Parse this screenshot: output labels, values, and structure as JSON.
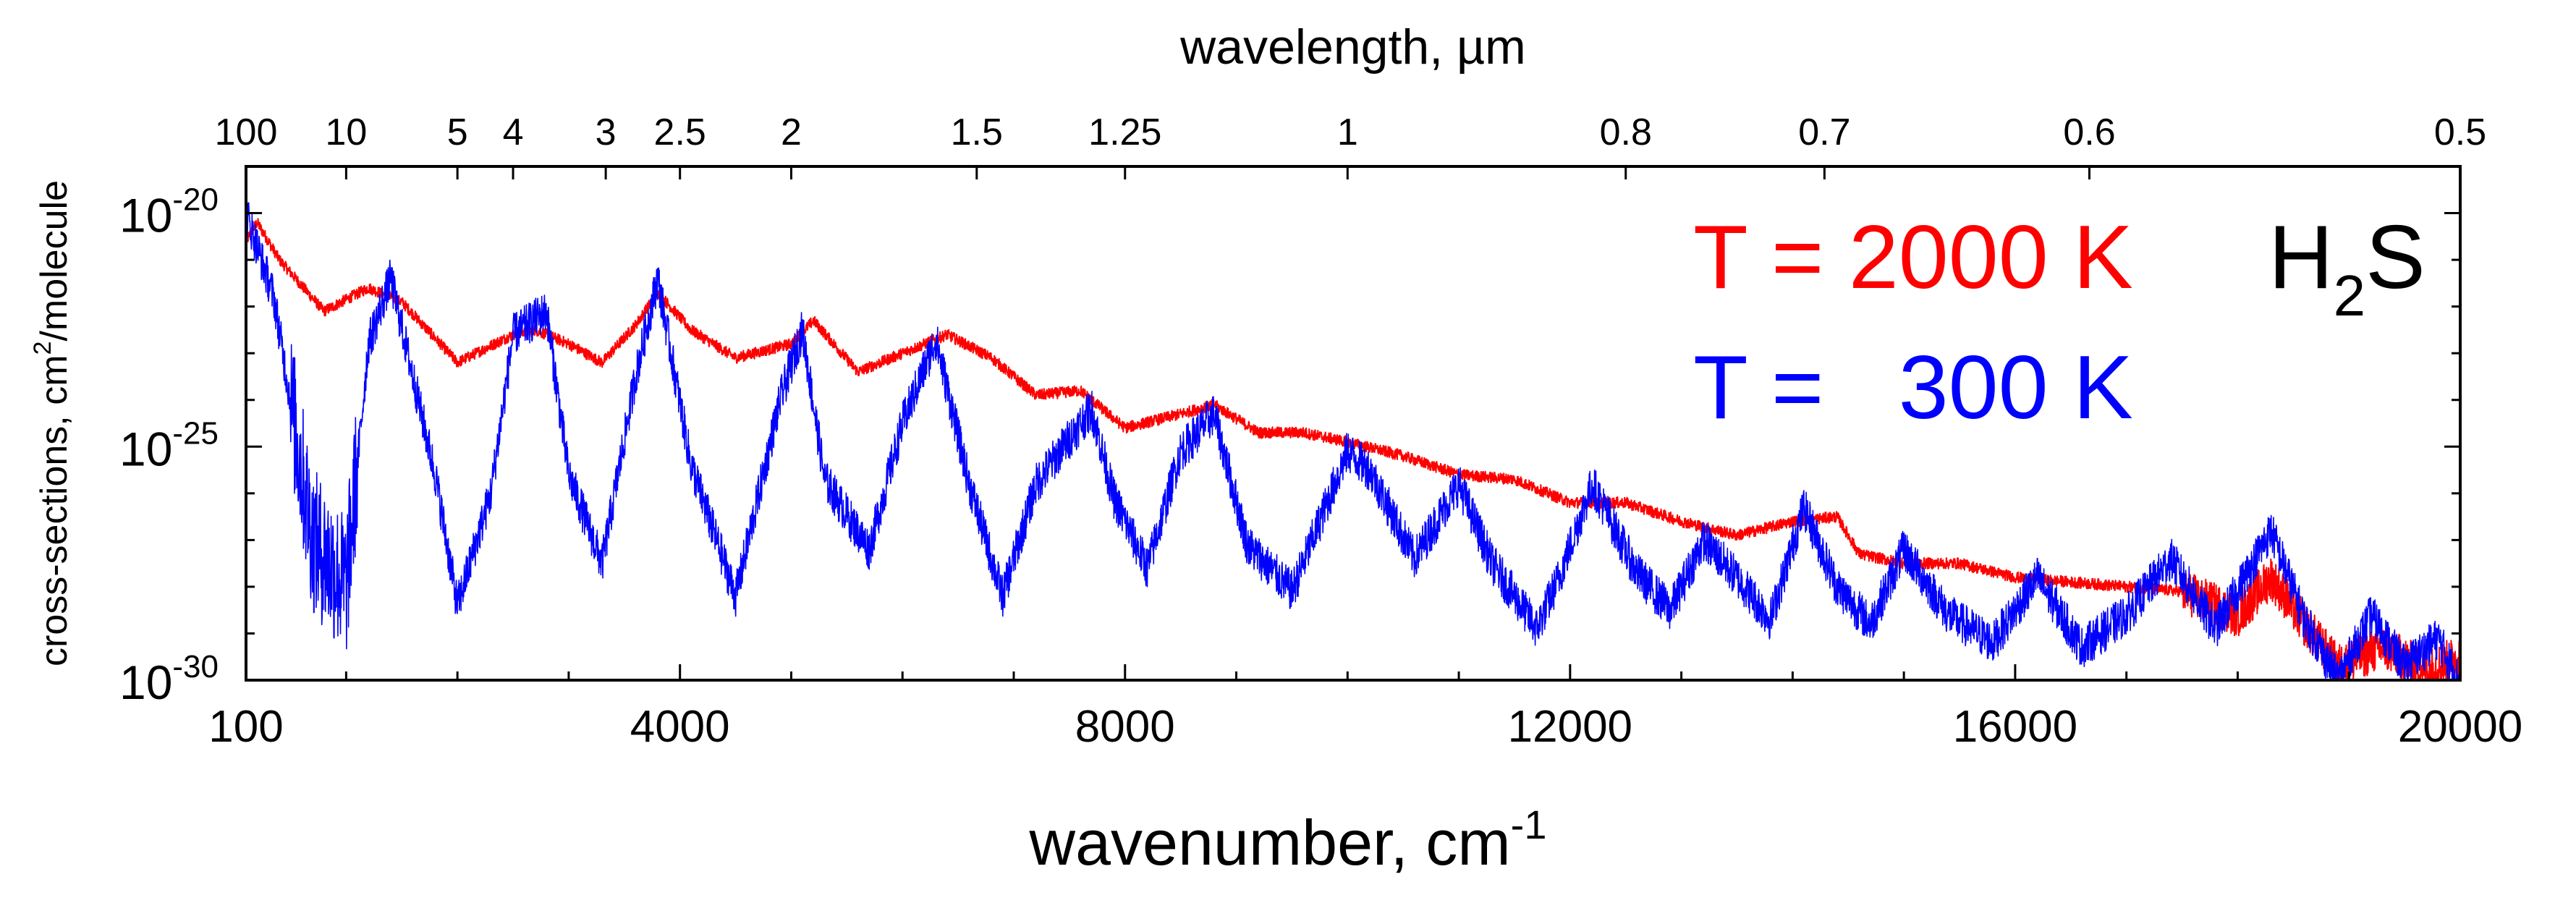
{
  "chart_data": {
    "type": "line",
    "title": "",
    "molecule": {
      "base": "H",
      "sub": "2",
      "rest": "S"
    },
    "xlabel": {
      "text": "wavenumber, cm",
      "sup": "-1"
    },
    "ylabel": {
      "text": "cross-sections, cm",
      "sup": "2",
      "rest": "/molecule"
    },
    "top_xlabel": "wavelength, µm",
    "xlim": [
      100,
      20000
    ],
    "ylim_log10": [
      -30,
      -19
    ],
    "x_ticks": [
      "100",
      "4000",
      "8000",
      "12000",
      "16000",
      "20000"
    ],
    "x_tick_values": [
      100,
      4000,
      8000,
      12000,
      16000,
      20000
    ],
    "y_ticks": [
      {
        "base": "10",
        "exp": "-20",
        "value": -20
      },
      {
        "base": "10",
        "exp": "-25",
        "value": -25
      },
      {
        "base": "10",
        "exp": "-30",
        "value": -30
      }
    ],
    "top_ticks": [
      {
        "label": "100",
        "wavenumber": 100
      },
      {
        "label": "10",
        "wavenumber": 1000
      },
      {
        "label": "5",
        "wavenumber": 2000
      },
      {
        "label": "4",
        "wavenumber": 2500
      },
      {
        "label": "3",
        "wavenumber": 3333
      },
      {
        "label": "2.5",
        "wavenumber": 4000
      },
      {
        "label": "2",
        "wavenumber": 5000
      },
      {
        "label": "1.5",
        "wavenumber": 6667
      },
      {
        "label": "1.25",
        "wavenumber": 8000
      },
      {
        "label": "1",
        "wavenumber": 10000
      },
      {
        "label": "0.8",
        "wavenumber": 12500
      },
      {
        "label": "0.7",
        "wavenumber": 14286
      },
      {
        "label": "0.6",
        "wavenumber": 16667
      },
      {
        "label": "0.5",
        "wavenumber": 20000
      }
    ],
    "series": [
      {
        "name": "T = 2000 K",
        "legend": "T = 2000 K",
        "color": "#ff0000",
        "envelope_x": [
          100,
          200,
          400,
          800,
          1200,
          1500,
          2000,
          2500,
          2700,
          3000,
          3300,
          3600,
          3800,
          4100,
          4500,
          5000,
          5200,
          5600,
          6000,
          6400,
          6800,
          7200,
          7600,
          8000,
          8500,
          8800,
          9200,
          9600,
          10000,
          10500,
          11000,
          11500,
          12000,
          12500,
          13000,
          13500,
          14000,
          14400,
          14600,
          15000,
          15500,
          16000,
          16500,
          17000,
          17500,
          18000,
          18300,
          18600,
          18900,
          19300,
          19700,
          20000
        ],
        "envelope_log10": [
          -20.6,
          -20.2,
          -21.0,
          -22.1,
          -21.6,
          -21.9,
          -23.2,
          -22.6,
          -22.5,
          -22.8,
          -23.2,
          -22.4,
          -21.7,
          -22.5,
          -23.1,
          -22.8,
          -22.3,
          -23.4,
          -23.0,
          -22.6,
          -23.1,
          -23.9,
          -23.8,
          -24.6,
          -24.3,
          -24.1,
          -24.7,
          -24.7,
          -24.9,
          -25.2,
          -25.6,
          -25.7,
          -26.2,
          -26.2,
          -26.6,
          -26.9,
          -26.6,
          -26.5,
          -27.3,
          -27.5,
          -27.5,
          -27.8,
          -27.9,
          -28.0,
          -28.1,
          -28.6,
          -27.8,
          -28.8,
          -29.7,
          -29.3,
          -29.8,
          -29.5
        ]
      },
      {
        "name": "T = 300 K",
        "legend": "T =   300 K",
        "color": "#0000ff",
        "envelope_x": [
          100,
          350,
          700,
          1000,
          1200,
          1400,
          1800,
          2000,
          2300,
          2500,
          2800,
          3000,
          3300,
          3600,
          3800,
          4100,
          4500,
          4900,
          5100,
          5300,
          5700,
          6000,
          6300,
          6600,
          6900,
          7200,
          7600,
          7700,
          7900,
          8200,
          8500,
          8800,
          9100,
          9500,
          9800,
          10000,
          10200,
          10600,
          11000,
          11300,
          11700,
          11900,
          12200,
          12600,
          12900,
          13200,
          13500,
          13800,
          14100,
          14400,
          14700,
          15000,
          15400,
          15800,
          16200,
          16600,
          17000,
          17400,
          17800,
          18300,
          18600,
          18900,
          19200,
          19500,
          19800,
          20000
        ],
        "envelope_log10": [
          -20.0,
          -21.8,
          -27.0,
          -28.0,
          -22.8,
          -21.4,
          -25.6,
          -28.4,
          -26.0,
          -22.6,
          -22.1,
          -25.6,
          -27.5,
          -23.5,
          -21.4,
          -25.4,
          -28.2,
          -24.0,
          -22.5,
          -25.7,
          -27.2,
          -24.5,
          -22.7,
          -25.8,
          -28.2,
          -25.8,
          -24.5,
          -24.2,
          -26.1,
          -27.6,
          -25.1,
          -24.3,
          -27.1,
          -28.1,
          -26.3,
          -25.1,
          -25.5,
          -27.4,
          -25.8,
          -27.5,
          -28.9,
          -27.8,
          -25.8,
          -27.7,
          -28.5,
          -27.0,
          -27.8,
          -28.7,
          -26.3,
          -28.0,
          -28.8,
          -27.2,
          -28.6,
          -29.2,
          -27.8,
          -29.3,
          -28.6,
          -27.4,
          -28.9,
          -26.8,
          -28.7,
          -30.0,
          -28.6,
          -29.7,
          -29.1,
          -30.1
        ]
      }
    ]
  }
}
